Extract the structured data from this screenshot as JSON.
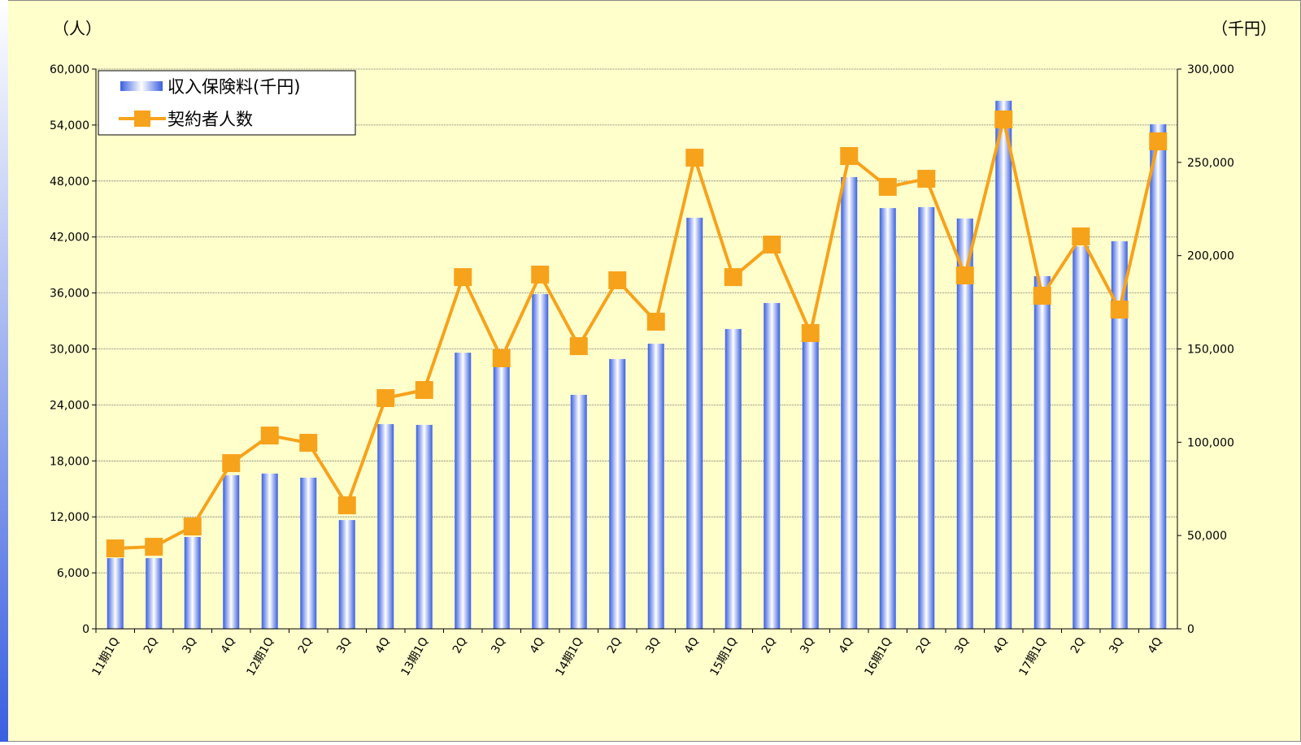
{
  "chart_data": {
    "type": "bar_line",
    "y_label": "（人）",
    "y2_label": "（千円）",
    "categories": [
      "11期1Q",
      "2Q",
      "3Q",
      "4Q",
      "12期1Q",
      "2Q",
      "3Q",
      "4Q",
      "13期1Q",
      "2Q",
      "3Q",
      "4Q",
      "14期1Q",
      "2Q",
      "3Q",
      "4Q",
      "15期1Q",
      "2Q",
      "3Q",
      "4Q",
      "16期1Q",
      "2Q",
      "3Q",
      "4Q",
      "17期1Q",
      "2Q",
      "3Q",
      "4Q"
    ],
    "series": [
      {
        "name": "収入保険料(千円)",
        "type": "bar",
        "axis": "y2",
        "color": "#3a5fe0",
        "values": [
          37900,
          37900,
          49200,
          82300,
          83200,
          81000,
          58300,
          109700,
          109300,
          148000,
          148000,
          179400,
          125400,
          144600,
          152800,
          220300,
          160700,
          174600,
          155000,
          242100,
          225500,
          226000,
          219900,
          283000,
          189000,
          205000,
          207700,
          270400
        ]
      },
      {
        "name": "契約者人数",
        "type": "line",
        "axis": "y",
        "color": "#f7a21b",
        "values": [
          8620,
          8800,
          10970,
          17760,
          20720,
          19940,
          13240,
          24730,
          25600,
          37700,
          29000,
          37970,
          30300,
          37360,
          32920,
          50500,
          37700,
          41190,
          31700,
          50680,
          47370,
          48240,
          37880,
          54600,
          35700,
          42060,
          34220,
          52250
        ]
      }
    ],
    "ylim": [
      0,
      60000
    ],
    "yticks": [
      0,
      {
        "value": 6000,
        "label": "6,000"
      },
      {
        "value": 12000,
        "label": "12,000"
      },
      {
        "value": 18000,
        "label": "18,000"
      },
      {
        "value": 24000,
        "label": "24,000"
      },
      {
        "value": 30000,
        "label": "30,000"
      },
      {
        "value": 36000,
        "label": "36,000"
      },
      {
        "value": 42000,
        "label": "42,000"
      },
      {
        "value": 48000,
        "label": "48,000"
      },
      {
        "value": 54000,
        "label": "54,000"
      },
      {
        "value": 60000,
        "label": "60,000"
      }
    ],
    "y2lim": [
      0,
      300000
    ],
    "y2ticks": [
      0,
      {
        "value": 50000,
        "label": "50,000"
      },
      {
        "value": 100000,
        "label": "100,000"
      },
      {
        "value": 150000,
        "label": "150,000"
      },
      {
        "value": 200000,
        "label": "200,000"
      },
      {
        "value": 250000,
        "label": "250,000"
      },
      {
        "value": 300000,
        "label": "300,000"
      }
    ],
    "grid": true,
    "legend": "top-left"
  }
}
